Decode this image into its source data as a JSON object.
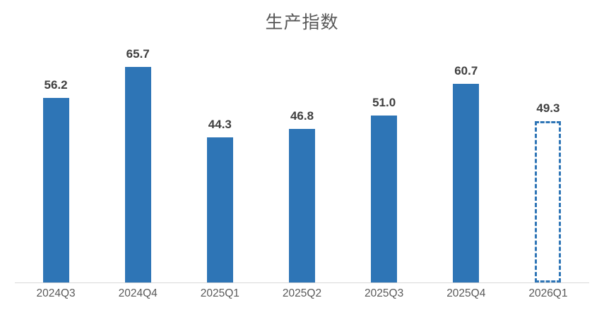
{
  "chart_data": {
    "type": "bar",
    "title": "生产指数",
    "categories": [
      "2024Q3",
      "2024Q4",
      "2025Q1",
      "2025Q2",
      "2025Q3",
      "2025Q4",
      "2026Q1"
    ],
    "values": [
      56.2,
      65.7,
      44.3,
      46.8,
      51.0,
      60.7,
      49.3
    ],
    "labels": [
      "56.2",
      "65.7",
      "44.3",
      "46.8",
      "51.0",
      "60.7",
      "49.3"
    ],
    "ylim": [
      0,
      75
    ],
    "grid": false,
    "legend": "none",
    "forecast": {
      "index": 6,
      "style": "dashed-outline"
    },
    "colors": {
      "bar": "#2E75B6",
      "axis_line": "#D9D9D9",
      "tick_label": "#595959",
      "data_label": "#3F3F3F",
      "title": "#595959",
      "background": "#FFFFFF"
    }
  }
}
